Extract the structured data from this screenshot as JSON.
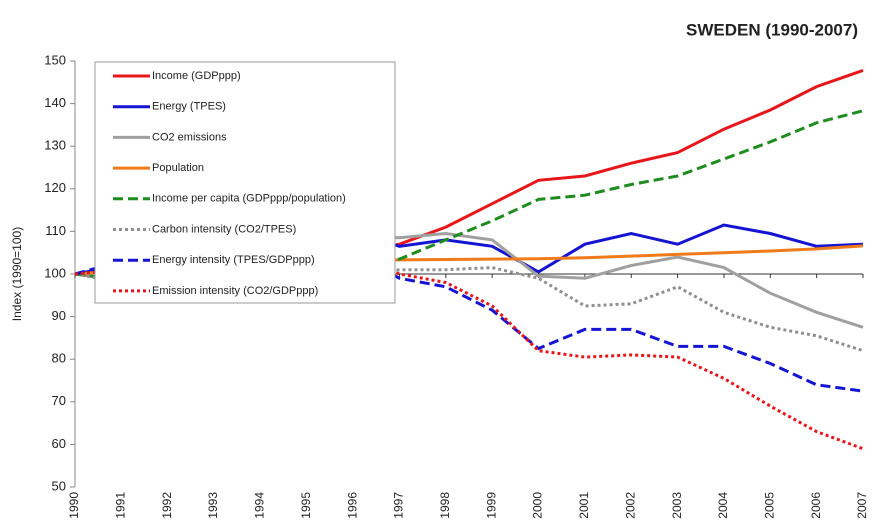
{
  "chart_data": {
    "type": "line",
    "title": "SWEDEN (1990-2007)",
    "y_label": "Index (1990=100)",
    "categories": [
      "1990",
      "1991",
      "1992",
      "1993",
      "1994",
      "1995",
      "1996",
      "1997",
      "1998",
      "1999",
      "2000",
      "2001",
      "2002",
      "2003",
      "2004",
      "2005",
      "2006",
      "2007"
    ],
    "ylim": [
      50,
      150
    ],
    "yticks": [
      50,
      60,
      70,
      80,
      90,
      100,
      110,
      120,
      130,
      140,
      150
    ],
    "x_axis_crossing": 100,
    "grid": false,
    "legend": "upper left",
    "series": [
      {
        "name": "Income (GDPppp)",
        "color": "#e8151b",
        "dash": "solid",
        "values": [
          100,
          99,
          97.5,
          96,
          100,
          104,
          105,
          107,
          111,
          116.5,
          122,
          123,
          126,
          128.5,
          134,
          138.5,
          144,
          147.8
        ]
      },
      {
        "name": "Energy (TPES)",
        "color": "#1414d2",
        "dash": "solid",
        "values": [
          100,
          102,
          102,
          101,
          105,
          105,
          110,
          106.5,
          108,
          106.5,
          100.5,
          107,
          109.5,
          107,
          111.5,
          109.5,
          106.5,
          107
        ]
      },
      {
        "name": "CO2 emissions",
        "color": "#a0a0a0",
        "dash": "solid",
        "values": [
          100,
          100,
          100,
          99,
          103,
          102,
          109,
          108.5,
          109.5,
          108,
          99.5,
          99,
          102,
          104,
          101.5,
          95.5,
          91,
          87.5
        ]
      },
      {
        "name": "Population",
        "color": "#f07b1a",
        "dash": "solid",
        "values": [
          100,
          100.8,
          101.5,
          102.1,
          102.8,
          103.2,
          103.3,
          103.3,
          103.4,
          103.5,
          103.6,
          103.8,
          104.2,
          104.6,
          105,
          105.4,
          105.9,
          106.6
        ]
      },
      {
        "name": "Income per capita (GDPppp/population)",
        "color": "#1e8c1e",
        "dash": "dashed",
        "values": [
          100,
          98.5,
          96.5,
          94.5,
          98,
          101,
          103.5,
          103.5,
          108,
          112.5,
          117.5,
          118.5,
          121,
          123,
          127,
          131,
          135.5,
          138.3
        ]
      },
      {
        "name": "Carbon intensity (CO2/TPES)",
        "color": "#909090",
        "dash": "dotted",
        "values": [
          100,
          98,
          98,
          98,
          98,
          97,
          99,
          101,
          101,
          101.5,
          99,
          92.5,
          93,
          97,
          91,
          87.5,
          85.5,
          82
        ]
      },
      {
        "name": "Energy intensity (TPES/GDPppp)",
        "color": "#1414d2",
        "dash": "dashed",
        "values": [
          100,
          103,
          104.5,
          105,
          105,
          101,
          105,
          99,
          97,
          91.5,
          82.5,
          87,
          87,
          83,
          83,
          79,
          74,
          72.5
        ]
      },
      {
        "name": "Emission intensity (CO2/GDPppp)",
        "color": "#e8151b",
        "dash": "dotted",
        "values": [
          100,
          101,
          102.5,
          103,
          103,
          98,
          104,
          100,
          98,
          92.5,
          82,
          80.5,
          81,
          80.5,
          75.5,
          69,
          63,
          59
        ]
      }
    ]
  }
}
